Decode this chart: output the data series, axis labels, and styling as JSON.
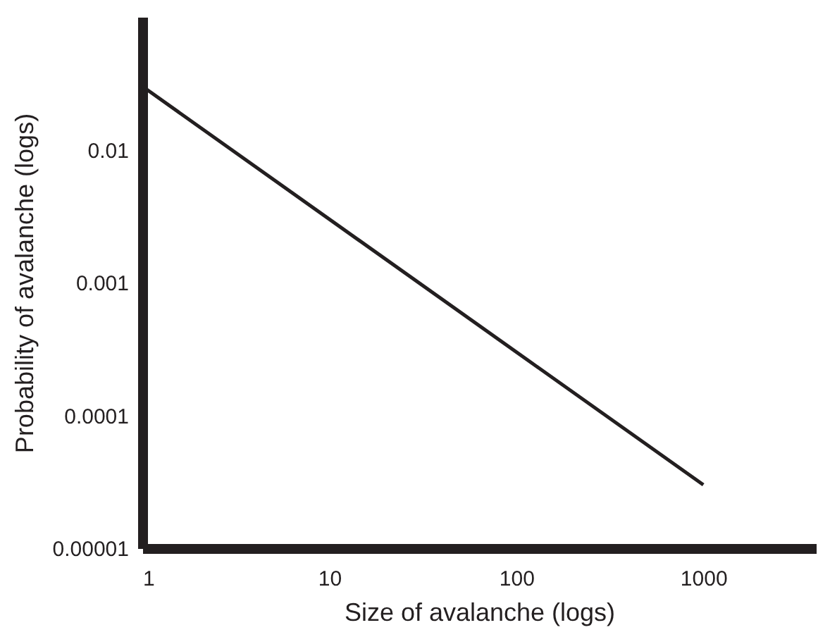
{
  "chart_data": {
    "type": "line",
    "xlabel": "Size of avalanche (logs)",
    "ylabel": "Probability of avalanche (logs)",
    "x": [
      1,
      1000
    ],
    "series": [
      {
        "color": "#231f20",
        "values": [
          0.03,
          3e-05
        ]
      }
    ],
    "log": "xy",
    "xlim": [
      1,
      4000
    ],
    "ylim": [
      1e-05,
      0.1
    ],
    "xticks": [
      1,
      10,
      100,
      1000
    ],
    "yticks": [
      {
        "value": 1e-05,
        "label": "0.00001"
      },
      {
        "value": 0.0001,
        "label": "0.0001"
      },
      {
        "value": 0.001,
        "label": "0.001"
      },
      {
        "value": 0.01,
        "label": "0.01"
      }
    ],
    "grid": false,
    "legend": false,
    "line_style": "solid",
    "marker": "none"
  }
}
